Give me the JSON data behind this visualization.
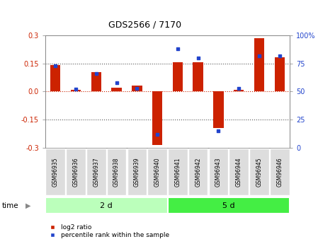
{
  "title": "GDS2566 / 7170",
  "samples": [
    "GSM96935",
    "GSM96936",
    "GSM96937",
    "GSM96938",
    "GSM96939",
    "GSM96940",
    "GSM96941",
    "GSM96942",
    "GSM96943",
    "GSM96944",
    "GSM96945",
    "GSM96946"
  ],
  "log2_ratio": [
    0.143,
    0.01,
    0.105,
    0.02,
    0.03,
    -0.285,
    0.158,
    0.155,
    -0.195,
    0.01,
    0.285,
    0.182
  ],
  "percentile_rank": [
    73,
    52,
    66,
    58,
    53,
    12,
    88,
    80,
    15,
    53,
    82,
    82
  ],
  "groups": [
    {
      "label": "2 d",
      "start": 0,
      "end": 6,
      "color": "#bbffbb"
    },
    {
      "label": "5 d",
      "start": 6,
      "end": 12,
      "color": "#44ee44"
    }
  ],
  "ylim": [
    -0.3,
    0.3
  ],
  "right_ylim": [
    0,
    100
  ],
  "yticks_left": [
    -0.3,
    -0.15,
    0.0,
    0.15,
    0.3
  ],
  "yticks_right": [
    0,
    25,
    50,
    75,
    100
  ],
  "bar_color_red": "#cc2200",
  "bar_color_blue": "#2244cc",
  "dotted_line_color": "#555555",
  "zero_line_color": "#cc2200",
  "sample_box_color": "#dddddd",
  "legend_red": "log2 ratio",
  "legend_blue": "percentile rank within the sample",
  "bar_width": 0.5
}
